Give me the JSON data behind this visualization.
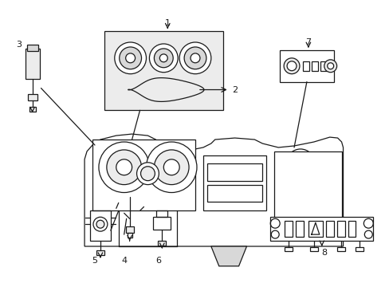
{
  "bg_color": "#ffffff",
  "line_color": "#1a1a1a",
  "gray_fill": "#d8d8d8",
  "light_gray": "#ececec",
  "fig_width": 4.89,
  "fig_height": 3.6,
  "dpi": 100
}
